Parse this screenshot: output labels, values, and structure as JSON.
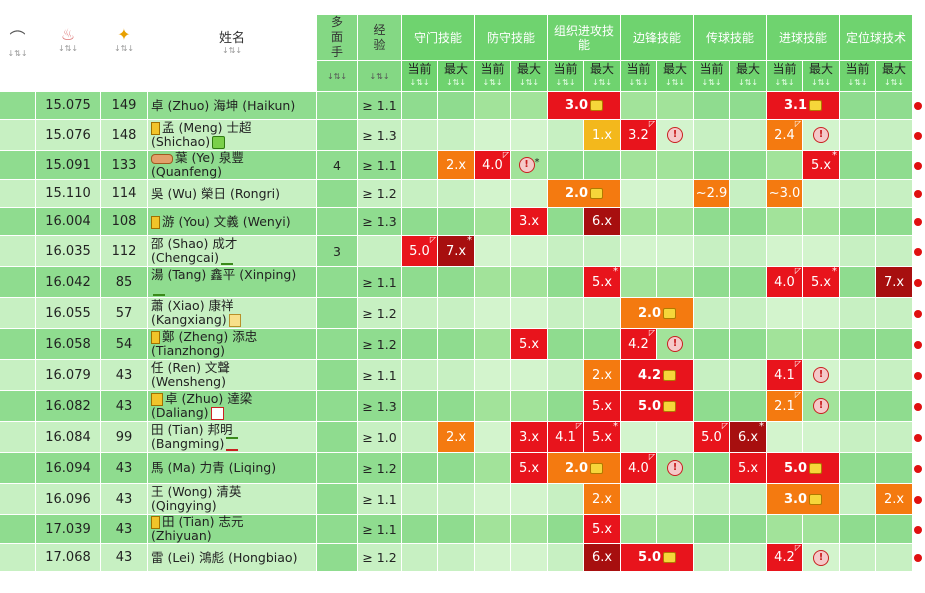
{
  "header": {
    "col_shirt_icon": "shirt-icon",
    "col_age_icon": "cake-icon",
    "col_tsi_icon": "medal-icon",
    "name_label": "姓名",
    "sort_arrows": "↓⇅↓",
    "multi_label": "多\n面\n手",
    "exp_label": "经\n验",
    "groups": [
      "守门技能",
      "防守技能",
      "组织进攻技能",
      "边锋技能",
      "传球技能",
      "进球技能",
      "定位球技术"
    ],
    "sub_current": "当前",
    "sub_max": "最大"
  },
  "rows": [
    {
      "age": "15.075",
      "tsi": "149",
      "name1": "卓 (Zhuo) 海坤 (Haikun)",
      "name2": "",
      "badge": "",
      "icon": "",
      "multi": "",
      "exp": "≥ 1.1",
      "skills": [
        [
          "",
          ""
        ],
        [
          "",
          ""
        ],
        [
          "3.0 🔒:red:bold:span",
          ""
        ],
        [
          "",
          ""
        ],
        [
          "",
          ""
        ],
        [
          "3.1 🔒:red:bold:span",
          ""
        ],
        [
          "",
          ""
        ]
      ]
    },
    {
      "age": "15.076",
      "tsi": "148",
      "name1": "孟 (Meng) 士超",
      "name2": "(Shichao)",
      "badge": "y",
      "icon": "g",
      "multi": "",
      "exp": "≥ 1.3",
      "skills": [
        [
          "",
          ""
        ],
        [
          "",
          ""
        ],
        [
          "",
          "1.x:yel"
        ],
        [
          "3.2:red:c",
          "!:warn"
        ],
        [
          "",
          ""
        ],
        [
          "2.4:org:c",
          "!:warn"
        ],
        [
          "",
          ""
        ]
      ]
    },
    {
      "age": "15.091",
      "tsi": "133",
      "name1": "葉 (Ye) 泉豐",
      "name2": "(Quanfeng)",
      "badge": "o",
      "icon": "",
      "multi": "4",
      "exp": "≥ 1.1",
      "skills": [
        [
          "",
          "2.x:org"
        ],
        [
          "4.0:red:c",
          "!*:warn"
        ],
        [
          "",
          ""
        ],
        [
          "",
          ""
        ],
        [
          "",
          ""
        ],
        [
          "",
          "5.x:red:s"
        ],
        [
          "",
          ""
        ]
      ]
    },
    {
      "age": "15.110",
      "tsi": "114",
      "name1": "吳 (Wu) 榮日 (Rongri)",
      "name2": "",
      "badge": "",
      "icon": "",
      "multi": "",
      "exp": "≥ 1.2",
      "skills": [
        [
          "",
          ""
        ],
        [
          "",
          ""
        ],
        [
          "2.0 🔒:org:bold:span",
          ""
        ],
        [
          "",
          ""
        ],
        [
          "~2.9:org",
          ""
        ],
        [
          "~3.0:org",
          ""
        ],
        [
          "",
          ""
        ]
      ]
    },
    {
      "age": "16.004",
      "tsi": "108",
      "name1": "游 (You) 文義 (Wenyi)",
      "name2": "",
      "badge": "y",
      "icon": "",
      "multi": "",
      "exp": "≥ 1.3",
      "skills": [
        [
          "",
          ""
        ],
        [
          "",
          "3.x:red"
        ],
        [
          "",
          "6.x:dred"
        ],
        [
          "",
          ""
        ],
        [
          "",
          ""
        ],
        [
          "",
          ""
        ],
        [
          "",
          ""
        ]
      ]
    },
    {
      "age": "16.035",
      "tsi": "112",
      "name1": "邵 (Shao) 成才",
      "name2": "(Chengcai)",
      "badge": "",
      "icon": "t",
      "multi": "3",
      "exp": "",
      "skills": [
        [
          "5.0:red:c",
          "7.x:dred:s"
        ],
        [
          "",
          ""
        ],
        [
          "",
          ""
        ],
        [
          "",
          ""
        ],
        [
          "",
          ""
        ],
        [
          "",
          ""
        ],
        [
          "",
          ""
        ]
      ]
    },
    {
      "age": "16.042",
      "tsi": "85",
      "name1": "湯 (Tang) 鑫平 (Xinping)",
      "name2": "",
      "badge": "",
      "icon": "t2",
      "multi": "",
      "exp": "≥ 1.1",
      "skills": [
        [
          "",
          ""
        ],
        [
          "",
          ""
        ],
        [
          "",
          "5.x:red:s"
        ],
        [
          "",
          ""
        ],
        [
          "",
          ""
        ],
        [
          "4.0:red:c",
          "5.x:red:s"
        ],
        [
          "",
          "7.x:dred"
        ]
      ]
    },
    {
      "age": "16.055",
      "tsi": "57",
      "name1": "蕭 (Xiao) 康祥",
      "name2": "(Kangxiang)",
      "badge": "",
      "icon": "p",
      "multi": "",
      "exp": "≥ 1.2",
      "skills": [
        [
          "",
          ""
        ],
        [
          "",
          ""
        ],
        [
          "",
          ""
        ],
        [
          "2.0 🔒:org:bold:span",
          ""
        ],
        [
          "",
          ""
        ],
        [
          "",
          ""
        ],
        [
          "",
          ""
        ]
      ]
    },
    {
      "age": "16.058",
      "tsi": "54",
      "name1": "鄭 (Zheng) 添忠",
      "name2": "(Tianzhong)",
      "badge": "y",
      "icon": "",
      "multi": "",
      "exp": "≥ 1.2",
      "skills": [
        [
          "",
          ""
        ],
        [
          "",
          "5.x:red"
        ],
        [
          "",
          ""
        ],
        [
          "4.2:red:c",
          "!:warn"
        ],
        [
          "",
          ""
        ],
        [
          "",
          ""
        ],
        [
          "",
          ""
        ]
      ]
    },
    {
      "age": "16.079",
      "tsi": "43",
      "name1": "任 (Ren) 文聲",
      "name2": "(Wensheng)",
      "badge": "",
      "icon": "",
      "multi": "",
      "exp": "≥ 1.1",
      "skills": [
        [
          "",
          ""
        ],
        [
          "",
          ""
        ],
        [
          "",
          "2.x:org"
        ],
        [
          "4.2 🔒:red:bold:span",
          ""
        ],
        [
          "",
          ""
        ],
        [
          "4.1:red:c",
          "!:warn"
        ],
        [
          "",
          ""
        ]
      ]
    },
    {
      "age": "16.082",
      "tsi": "43",
      "name1": "卓 (Zhuo) 達梁",
      "name2": "(Daliang)",
      "badge": "yy",
      "icon": "r",
      "multi": "",
      "exp": "≥ 1.3",
      "skills": [
        [
          "",
          ""
        ],
        [
          "",
          ""
        ],
        [
          "",
          "5.x:red"
        ],
        [
          "5.0 🔒:red:bold:span",
          ""
        ],
        [
          "",
          ""
        ],
        [
          "2.1:org:c",
          "!:warn"
        ],
        [
          "",
          ""
        ]
      ]
    },
    {
      "age": "16.084",
      "tsi": "99",
      "name1": "田 (Tian) 邦明",
      "name2": "(Bangming)",
      "badge": "",
      "icon": "gt",
      "multi": "",
      "exp": "≥ 1.0",
      "skills": [
        [
          "",
          "2.x:org"
        ],
        [
          "",
          "3.x:red"
        ],
        [
          "4.1:red:c",
          "5.x:red:s"
        ],
        [
          "",
          ""
        ],
        [
          "5.0:red:c",
          "6.x:dred:s"
        ],
        [
          "",
          ""
        ],
        [
          "",
          ""
        ]
      ]
    },
    {
      "age": "16.094",
      "tsi": "43",
      "name1": "馬 (Ma) 力青 (Liqing)",
      "name2": "",
      "badge": "",
      "icon": "",
      "multi": "",
      "exp": "≥ 1.2",
      "skills": [
        [
          "",
          ""
        ],
        [
          "",
          "5.x:red"
        ],
        [
          "2.0 🔒:org:bold:span",
          ""
        ],
        [
          "4.0:red:c",
          "!:warn"
        ],
        [
          "",
          "5.x:red"
        ],
        [
          "5.0 🔒:red:bold:span",
          ""
        ],
        [
          "",
          ""
        ]
      ]
    },
    {
      "age": "16.096",
      "tsi": "43",
      "name1": "王 (Wong) 清英",
      "name2": "(Qingying)",
      "badge": "",
      "icon": "",
      "multi": "",
      "exp": "≥ 1.1",
      "skills": [
        [
          "",
          ""
        ],
        [
          "",
          ""
        ],
        [
          "",
          "2.x:org"
        ],
        [
          "",
          ""
        ],
        [
          "",
          ""
        ],
        [
          "3.0 🔒:org:bold:span",
          ""
        ],
        [
          "",
          "2.x:org"
        ]
      ]
    },
    {
      "age": "17.039",
      "tsi": "43",
      "name1": "田 (Tian) 志元",
      "name2": "(Zhiyuan)",
      "badge": "y",
      "icon": "",
      "multi": "",
      "exp": "≥ 1.1",
      "skills": [
        [
          "",
          ""
        ],
        [
          "",
          ""
        ],
        [
          "",
          "5.x:red"
        ],
        [
          "",
          ""
        ],
        [
          "",
          ""
        ],
        [
          "",
          ""
        ],
        [
          "",
          ""
        ]
      ]
    },
    {
      "age": "17.068",
      "tsi": "43",
      "name1": "雷 (Lei) 鴻彪 (Hongbiao)",
      "name2": "",
      "badge": "",
      "icon": "",
      "multi": "",
      "exp": "≥ 1.2",
      "skills": [
        [
          "",
          ""
        ],
        [
          "",
          ""
        ],
        [
          "",
          "6.x:dred"
        ],
        [
          "5.0 🔒:red:bold:span",
          ""
        ],
        [
          "",
          ""
        ],
        [
          "4.2:red:c",
          "!:warn"
        ],
        [
          "",
          ""
        ]
      ]
    }
  ]
}
